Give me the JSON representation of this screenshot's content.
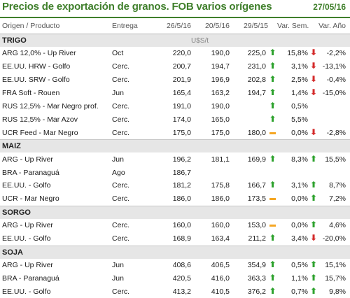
{
  "header": {
    "title": "Precios de exportación de granos. FOB varios orígenes",
    "date": "27/05/16"
  },
  "columns": [
    "Origen / Producto",
    "Entrega",
    "26/5/16",
    "20/5/16",
    "29/5/15",
    "Var. Sem.",
    "Var. Año"
  ],
  "unit_label": "U$S/t",
  "colors": {
    "title": "#3f7f2b",
    "up": "#2ea22e",
    "down": "#d42b2b",
    "flat": "#f5a623"
  },
  "sections": [
    {
      "name": "TRIGO",
      "rows": [
        {
          "product": "ARG 12,0% - Up River",
          "delivery": "Oct",
          "p1": "220,0",
          "p2": "190,0",
          "p3": "225,0",
          "p3_icon": "up",
          "var_sem": "15,8%",
          "sem_icon": "down",
          "var_anio": "-2,2%"
        },
        {
          "product": "EE.UU. HRW - Golfo",
          "delivery": "Cerc.",
          "p1": "200,7",
          "p2": "194,7",
          "p3": "231,0",
          "p3_icon": "up",
          "var_sem": "3,1%",
          "sem_icon": "down",
          "var_anio": "-13,1%"
        },
        {
          "product": "EE.UU. SRW - Golfo",
          "delivery": "Cerc.",
          "p1": "201,9",
          "p2": "196,9",
          "p3": "202,8",
          "p3_icon": "up",
          "var_sem": "2,5%",
          "sem_icon": "down",
          "var_anio": "-0,4%"
        },
        {
          "product": "FRA Soft - Rouen",
          "delivery": "Jun",
          "p1": "165,4",
          "p2": "163,2",
          "p3": "194,7",
          "p3_icon": "up",
          "var_sem": "1,4%",
          "sem_icon": "down",
          "var_anio": "-15,0%"
        },
        {
          "product": "RUS 12,5% - Mar Negro prof.",
          "delivery": "Cerc.",
          "p1": "191,0",
          "p2": "190,0",
          "p3": "",
          "p3_icon": "up",
          "var_sem": "0,5%",
          "sem_icon": "",
          "var_anio": ""
        },
        {
          "product": "RUS 12,5% - Mar Azov",
          "delivery": "Cerc.",
          "p1": "174,0",
          "p2": "165,0",
          "p3": "",
          "p3_icon": "up",
          "var_sem": "5,5%",
          "sem_icon": "",
          "var_anio": ""
        },
        {
          "product": "UCR Feed - Mar Negro",
          "delivery": "Cerc.",
          "p1": "175,0",
          "p2": "175,0",
          "p3": "180,0",
          "p3_icon": "flat",
          "var_sem": "0,0%",
          "sem_icon": "down",
          "var_anio": "-2,8%"
        }
      ]
    },
    {
      "name": "MAIZ",
      "rows": [
        {
          "product": "ARG - Up River",
          "delivery": "Jun",
          "p1": "196,2",
          "p2": "181,1",
          "p3": "169,9",
          "p3_icon": "up",
          "var_sem": "8,3%",
          "sem_icon": "up",
          "var_anio": "15,5%"
        },
        {
          "product": "BRA - Paranaguá",
          "delivery": "Ago",
          "p1": "186,7",
          "p2": "",
          "p3": "",
          "p3_icon": "",
          "var_sem": "",
          "sem_icon": "",
          "var_anio": ""
        },
        {
          "product": "EE.UU. - Golfo",
          "delivery": "Cerc.",
          "p1": "181,2",
          "p2": "175,8",
          "p3": "166,7",
          "p3_icon": "up",
          "var_sem": "3,1%",
          "sem_icon": "up",
          "var_anio": "8,7%"
        },
        {
          "product": "UCR - Mar Negro",
          "delivery": "Cerc.",
          "p1": "186,0",
          "p2": "186,0",
          "p3": "173,5",
          "p3_icon": "flat",
          "var_sem": "0,0%",
          "sem_icon": "up",
          "var_anio": "7,2%"
        }
      ]
    },
    {
      "name": "SORGO",
      "rows": [
        {
          "product": "ARG - Up River",
          "delivery": "Cerc.",
          "p1": "160,0",
          "p2": "160,0",
          "p3": "153,0",
          "p3_icon": "flat",
          "var_sem": "0,0%",
          "sem_icon": "up",
          "var_anio": "4,6%"
        },
        {
          "product": "EE.UU. - Golfo",
          "delivery": "Cerc.",
          "p1": "168,9",
          "p2": "163,4",
          "p3": "211,2",
          "p3_icon": "up",
          "var_sem": "3,4%",
          "sem_icon": "down",
          "var_anio": "-20,0%"
        }
      ]
    },
    {
      "name": "SOJA",
      "rows": [
        {
          "product": "ARG - Up River",
          "delivery": "Jun",
          "p1": "408,6",
          "p2": "406,5",
          "p3": "354,9",
          "p3_icon": "up",
          "var_sem": "0,5%",
          "sem_icon": "up",
          "var_anio": "15,1%"
        },
        {
          "product": "BRA - Paranaguá",
          "delivery": "Jun",
          "p1": "420,5",
          "p2": "416,0",
          "p3": "363,3",
          "p3_icon": "up",
          "var_sem": "1,1%",
          "sem_icon": "up",
          "var_anio": "15,7%"
        },
        {
          "product": "EE.UU. - Golfo",
          "delivery": "Cerc.",
          "p1": "413,2",
          "p2": "410,5",
          "p3": "376,2",
          "p3_icon": "up",
          "var_sem": "0,7%",
          "sem_icon": "up",
          "var_anio": "9,8%"
        }
      ]
    }
  ]
}
